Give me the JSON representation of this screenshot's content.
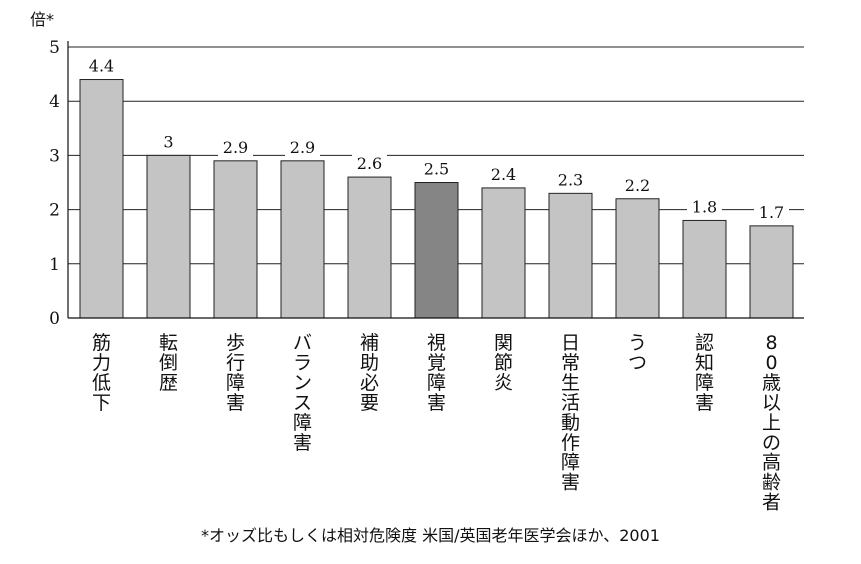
{
  "chart_data": {
    "type": "bar",
    "ylabel": "倍*",
    "ylim": [
      0,
      5
    ],
    "yticks": [
      0,
      1,
      2,
      3,
      4,
      5
    ],
    "grid": true,
    "categories": [
      "筋力低下",
      "転倒歴",
      "歩行障害",
      "バランス障害",
      "補助必要",
      "視覚障害",
      "関節炎",
      "日常生活動作障害",
      "うつ",
      "認知障害",
      "80歳以上の高齢者"
    ],
    "values": [
      4.4,
      3,
      2.9,
      2.9,
      2.6,
      2.5,
      2.4,
      2.3,
      2.2,
      1.8,
      1.7
    ],
    "value_labels": [
      "4.4",
      "3",
      "2.9",
      "2.9",
      "2.6",
      "2.5",
      "2.4",
      "2.3",
      "2.2",
      "1.8",
      "1.7"
    ],
    "highlight_index": 5,
    "colors": {
      "bar": "#c4c4c4",
      "highlight": "#858585",
      "edge": "#222222",
      "grid": "#222222"
    }
  },
  "footnote": "*オッズ比もしくは相対危険度 米国/英国老年医学会ほか、2001"
}
